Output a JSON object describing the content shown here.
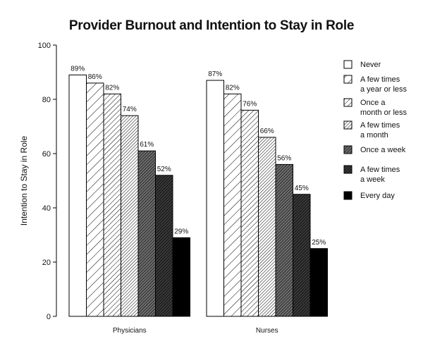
{
  "chart_data": {
    "type": "bar",
    "title": "Provider Burnout and Intention to Stay in Role",
    "xlabel": "",
    "ylabel": "Intention to Stay in Role",
    "ylim": [
      0,
      100
    ],
    "yticks": [
      0,
      20,
      40,
      60,
      80,
      100
    ],
    "grid": false,
    "legend_position": "right",
    "categories": [
      "Physicians",
      "Nurses"
    ],
    "series": [
      {
        "name": "Never",
        "values": [
          89,
          87
        ],
        "labels": [
          "89%",
          "87%"
        ],
        "fill": "white",
        "color": "#ffffff"
      },
      {
        "name": "A few times a year or less",
        "legend_lines": [
          "A few times",
          "a year or less"
        ],
        "values": [
          86,
          82
        ],
        "labels": [
          "86%",
          "82%"
        ],
        "fill": "hatch-sparse",
        "color": "#ffffff"
      },
      {
        "name": "Once a month or less",
        "legend_lines": [
          "Once a",
          "month or less"
        ],
        "values": [
          82,
          76
        ],
        "labels": [
          "82%",
          "76%"
        ],
        "fill": "hatch-medium",
        "color": "#ffffff"
      },
      {
        "name": "A few times a month",
        "legend_lines": [
          "A few times",
          "a month"
        ],
        "values": [
          74,
          66
        ],
        "labels": [
          "74%",
          "66%"
        ],
        "fill": "hatch-dense",
        "color": "#e6e6e6"
      },
      {
        "name": "Once a week",
        "values": [
          61,
          56
        ],
        "labels": [
          "61%",
          "56%"
        ],
        "fill": "hatch-dark",
        "color": "#8a8a8a"
      },
      {
        "name": "A few times a week",
        "legend_lines": [
          "A few times",
          "a week"
        ],
        "values": [
          52,
          45
        ],
        "labels": [
          "52%",
          "45%"
        ],
        "fill": "hatch-darker",
        "color": "#4a4a4a"
      },
      {
        "name": "Every day",
        "values": [
          29,
          25
        ],
        "labels": [
          "29%",
          "25%"
        ],
        "fill": "solid-black",
        "color": "#000000"
      }
    ]
  }
}
